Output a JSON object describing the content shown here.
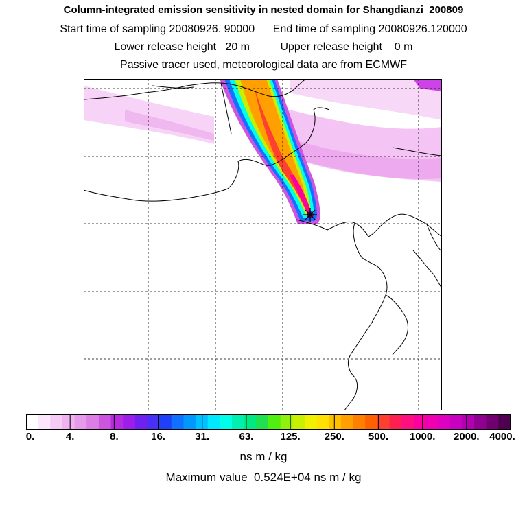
{
  "header": {
    "title": "Column-integrated emission sensitivity in nested domain for Shangdianzi_200809",
    "sampling": "Start time of sampling 20080926. 90000      End time of sampling 20080926.120000",
    "release": "Lower release height   20 m          Upper release height    0 m",
    "note": "Passive tracer used, meteorological data are from ECMWF"
  },
  "colorbar": {
    "labels": [
      "0.",
      "4.",
      "8.",
      "16.",
      "31.",
      "63.",
      "125.",
      "250.",
      "500.",
      "1000.",
      "2000.",
      "4000."
    ],
    "colors": [
      "#ffffff",
      "#fbe6fb",
      "#f6ccf6",
      "#f0b2f0",
      "#e79ae9",
      "#dc7ee3",
      "#cc55e0",
      "#b62ae0",
      "#9c1ee8",
      "#7020f0",
      "#4830f5",
      "#2040f8",
      "#1070ff",
      "#0098ff",
      "#00c0ff",
      "#00e8ff",
      "#00ffe8",
      "#00f0b0",
      "#00e880",
      "#20e050",
      "#50ef10",
      "#90f010",
      "#c8f000",
      "#f0f000",
      "#ffe000",
      "#ffc000",
      "#ffa000",
      "#ff8000",
      "#ff6000",
      "#ff4030",
      "#ff2050",
      "#ff1080",
      "#ff00a0",
      "#f000b0",
      "#e000c0",
      "#c800c0",
      "#b000b0",
      "#900090",
      "#700070",
      "#500050"
    ],
    "units": "ns m / kg",
    "maximum": "Maximum value  0.524E+04 ns m / kg"
  },
  "map": {
    "receptor_marker": "star-marker",
    "gridline_style": "dashed"
  }
}
